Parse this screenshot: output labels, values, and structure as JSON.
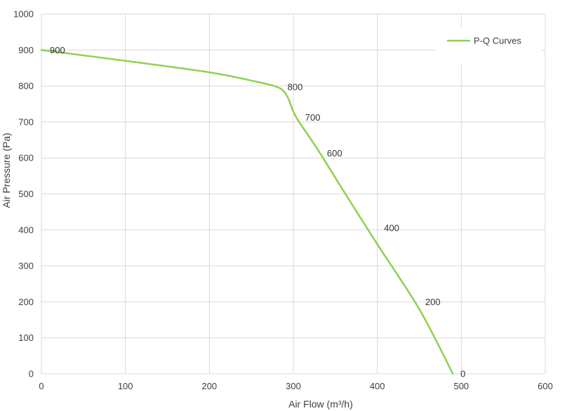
{
  "chart_data": {
    "type": "line",
    "title": "",
    "xlabel": "Air Flow  (m³/h)",
    "ylabel": "Air Pressure  (Pa)",
    "xlim": [
      0,
      600
    ],
    "ylim": [
      0,
      1000
    ],
    "x_ticks": [
      0,
      100,
      200,
      300,
      400,
      500,
      600
    ],
    "y_ticks": [
      0,
      100,
      200,
      300,
      400,
      500,
      600,
      700,
      800,
      900,
      1000
    ],
    "grid": true,
    "legend_position": "top-right",
    "series": [
      {
        "name": "P-Q Curves",
        "color": "#8fd14f",
        "x": [
          0,
          100,
          200,
          250,
          282,
          293,
          303,
          330,
          362,
          400,
          450,
          490
        ],
        "y": [
          900,
          870,
          838,
          815,
          796,
          770,
          715,
          620,
          500,
          360,
          180,
          0
        ]
      }
    ],
    "data_labels": [
      {
        "x": 0,
        "y": 900,
        "text": "900"
      },
      {
        "x": 283,
        "y": 797,
        "text": "800"
      },
      {
        "x": 304,
        "y": 712,
        "text": "700"
      },
      {
        "x": 330,
        "y": 613,
        "text": "600"
      },
      {
        "x": 398,
        "y": 405,
        "text": "400"
      },
      {
        "x": 447,
        "y": 200,
        "text": "200"
      },
      {
        "x": 489,
        "y": 0,
        "text": "0"
      }
    ]
  }
}
